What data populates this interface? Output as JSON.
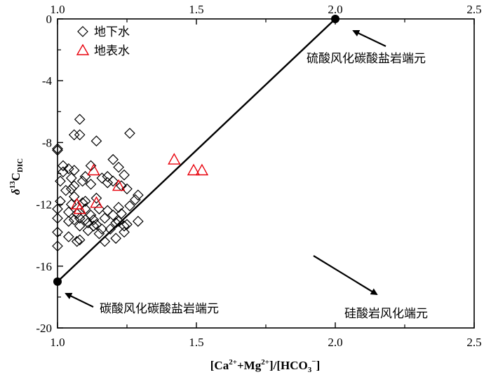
{
  "chart_data": {
    "type": "scatter",
    "title": "",
    "xlim": [
      1.0,
      2.5
    ],
    "ylim": [
      -20,
      0
    ],
    "xticks": [
      "1.0",
      "1.5",
      "2.0",
      "2.5"
    ],
    "yticks": [
      "0",
      "-4",
      "-8",
      "-12",
      "-16",
      "-20"
    ],
    "grid": false,
    "legend_position": "top-left",
    "colors": {
      "groundwater": "#000000",
      "surface": "#e8000b",
      "line": "#000000"
    },
    "series": [
      {
        "name": "地下水",
        "marker": "diamond",
        "points": [
          [
            1.0,
            -14.7
          ],
          [
            1.0,
            -13.8
          ],
          [
            1.0,
            -12.9
          ],
          [
            1.0,
            -12.3
          ],
          [
            1.01,
            -11.8
          ],
          [
            1.01,
            -10.5
          ],
          [
            1.02,
            -9.9
          ],
          [
            1.02,
            -9.5
          ],
          [
            1.03,
            -11.1
          ],
          [
            1.04,
            -12.5
          ],
          [
            1.04,
            -14.1
          ],
          [
            1.04,
            -13.1
          ],
          [
            1.05,
            -10.3
          ],
          [
            1.05,
            -11.0
          ],
          [
            1.05,
            -12.0
          ],
          [
            1.06,
            -13.0
          ],
          [
            1.06,
            -10.8
          ],
          [
            1.06,
            -11.5
          ],
          [
            1.07,
            -12.6
          ],
          [
            1.07,
            -14.4
          ],
          [
            1.08,
            -13.4
          ],
          [
            1.08,
            -12.9
          ],
          [
            1.08,
            -14.3
          ],
          [
            1.09,
            -11.9
          ],
          [
            1.09,
            -10.5
          ],
          [
            1.1,
            -13.0
          ],
          [
            1.1,
            -12.3
          ],
          [
            1.1,
            -11.8
          ],
          [
            1.11,
            -13.2
          ],
          [
            1.11,
            -13.7
          ],
          [
            1.12,
            -10.7
          ],
          [
            1.12,
            -12.7
          ],
          [
            1.13,
            -13.4
          ],
          [
            1.13,
            -13.0
          ],
          [
            1.14,
            -11.6
          ],
          [
            1.14,
            -13.3
          ],
          [
            1.15,
            -13.9
          ],
          [
            1.15,
            -12.3
          ],
          [
            1.16,
            -10.3
          ],
          [
            1.16,
            -13.6
          ],
          [
            1.17,
            -12.9
          ],
          [
            1.17,
            -14.4
          ],
          [
            1.18,
            -12.4
          ],
          [
            1.18,
            -10.2
          ],
          [
            1.19,
            -13.6
          ],
          [
            1.2,
            -10.5
          ],
          [
            1.2,
            -12.7
          ],
          [
            1.21,
            -13.2
          ],
          [
            1.21,
            -14.2
          ],
          [
            1.22,
            -13.1
          ],
          [
            1.22,
            -12.2
          ],
          [
            1.23,
            -12.6
          ],
          [
            1.23,
            -10.8
          ],
          [
            1.24,
            -13.4
          ],
          [
            1.24,
            -13.8
          ],
          [
            1.25,
            -11.0
          ],
          [
            1.25,
            -13.3
          ],
          [
            1.26,
            -12.1
          ],
          [
            1.28,
            -11.7
          ],
          [
            1.29,
            -11.4
          ],
          [
            1.29,
            -13.1
          ],
          [
            1.0,
            -8.4
          ],
          [
            1.0,
            -8.5
          ],
          [
            1.06,
            -7.5
          ],
          [
            1.08,
            -6.5
          ],
          [
            1.08,
            -7.5
          ],
          [
            1.14,
            -7.9
          ],
          [
            1.26,
            -7.4
          ],
          [
            1.12,
            -9.5
          ],
          [
            1.2,
            -9.1
          ],
          [
            1.22,
            -9.6
          ],
          [
            1.24,
            -10.1
          ],
          [
            1.18,
            -10.6
          ],
          [
            1.04,
            -9.7
          ],
          [
            1.06,
            -9.8
          ],
          [
            1.1,
            -10.2
          ]
        ]
      },
      {
        "name": "地表水",
        "marker": "triangle",
        "points": [
          [
            1.08,
            -12.3
          ],
          [
            1.07,
            -12.0
          ],
          [
            1.14,
            -11.9
          ],
          [
            1.13,
            -9.8
          ],
          [
            1.22,
            -10.8
          ],
          [
            1.42,
            -9.1
          ],
          [
            1.49,
            -9.8
          ],
          [
            1.52,
            -9.8
          ]
        ]
      }
    ],
    "reference_line": {
      "from": [
        1.0,
        -17
      ],
      "to": [
        2.0,
        0
      ]
    },
    "annotations": [
      {
        "text": "硫酸风化碳酸盐岩端元",
        "point": [
          2.0,
          0
        ]
      },
      {
        "text": "碳酸风化碳酸盐岩端元",
        "point": [
          1.0,
          -17
        ]
      },
      {
        "text": "硅酸岩风化端元",
        "direction": "lower-right"
      }
    ]
  }
}
